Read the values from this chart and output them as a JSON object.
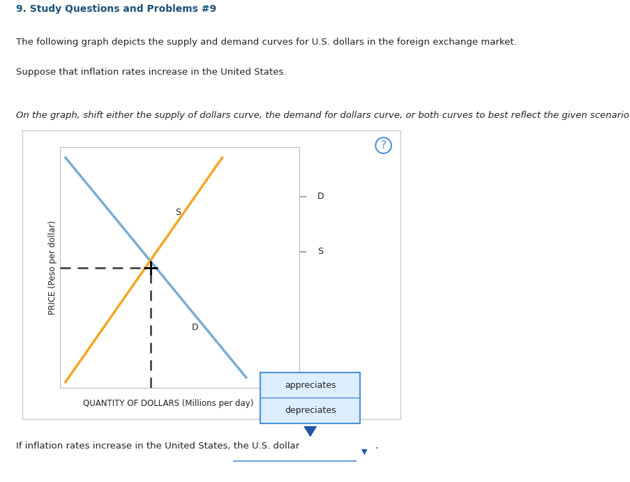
{
  "title": "9. Study Questions and Problems #9",
  "subtitle1": "The following graph depicts the supply and demand curves for U.S. dollars in the foreign exchange market.",
  "subtitle2": "Suppose that inflation rates increase in the United States.",
  "instruction": "On the graph, shift either the supply of dollars curve, the demand for dollars curve, or both curves to best reflect the given scenario.",
  "xlabel": "QUANTITY OF DOLLARS (Millions per day)",
  "ylabel": "PRICE (Peso per dollar)",
  "footer": "If inflation rates increase in the United States, the U.S. dollar",
  "demand_label": "D",
  "supply_label": "S",
  "demand_color": "#7aadd4",
  "supply_color": "#f5a623",
  "dashed_color": "#333333",
  "bg_color": "#ffffff",
  "plot_bg": "#ffffff",
  "outer_border_color": "#cccccc",
  "legend_D_label": "D",
  "legend_S_label": "S",
  "dropdown_options": [
    "appreciates",
    "depreciates"
  ],
  "question_color": "#1a5276",
  "text_color": "#222222",
  "legend_color": "#aaaaaa",
  "dropdown_border": "#4a90d9",
  "dropdown_bg": "#ddeeff",
  "question_mark_color": "#4a90d9",
  "arrow_color": "#2255aa"
}
